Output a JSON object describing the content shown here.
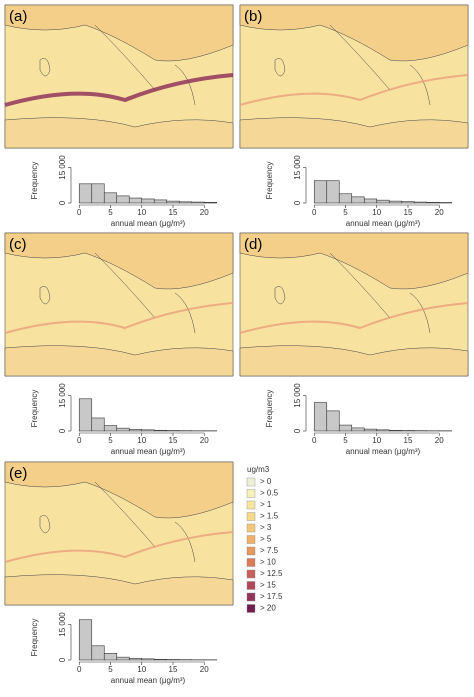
{
  "panels": [
    {
      "label": "(a)",
      "chart_data": {
        "type": "histogram",
        "bins": [
          0,
          2,
          4,
          6,
          8,
          10,
          12,
          14,
          16,
          18,
          20,
          22
        ],
        "values": [
          8100,
          8100,
          4300,
          3000,
          2100,
          1700,
          1300,
          800,
          500,
          400,
          300
        ],
        "color": "#c8c8c8",
        "xlim": [
          -1,
          23
        ],
        "ylim": [
          0,
          19000
        ],
        "xticks": [
          0,
          5,
          10,
          15,
          20
        ],
        "yticks": [
          0,
          {
            "value": 15000,
            "label": "15 000"
          }
        ],
        "x_label": "annual mean (μg/m³)",
        "y_label": "Frequency"
      }
    },
    {
      "label": "(b)",
      "chart_data": {
        "type": "histogram",
        "bins": [
          0,
          2,
          4,
          6,
          8,
          10,
          12,
          14,
          16,
          18,
          20,
          22
        ],
        "values": [
          9400,
          9400,
          3900,
          2600,
          1700,
          1200,
          800,
          600,
          400,
          300,
          200
        ],
        "color": "#c8c8c8",
        "xlim": [
          -1,
          23
        ],
        "ylim": [
          0,
          19000
        ],
        "xticks": [
          0,
          5,
          10,
          15,
          20
        ],
        "yticks": [
          0,
          {
            "value": 15000,
            "label": "15 000"
          }
        ],
        "x_label": "annual mean (μg/m³)",
        "y_label": "Frequency"
      }
    },
    {
      "label": "(c)",
      "chart_data": {
        "type": "histogram",
        "bins": [
          0,
          2,
          4,
          6,
          8,
          10,
          12,
          14,
          16,
          18,
          20,
          22
        ],
        "values": [
          13600,
          5500,
          2300,
          1200,
          700,
          500,
          300,
          200,
          150,
          100,
          100
        ],
        "color": "#c8c8c8",
        "xlim": [
          -1,
          23
        ],
        "ylim": [
          0,
          19000
        ],
        "xticks": [
          0,
          5,
          10,
          15,
          20
        ],
        "yticks": [
          0,
          {
            "value": 15000,
            "label": "15 000"
          }
        ],
        "x_label": "annual mean (μg/m³)",
        "y_label": "Frequency"
      }
    },
    {
      "label": "(d)",
      "chart_data": {
        "type": "histogram",
        "bins": [
          0,
          2,
          4,
          6,
          8,
          10,
          12,
          14,
          16,
          18,
          20,
          22
        ],
        "values": [
          12000,
          8500,
          2500,
          1300,
          800,
          500,
          300,
          200,
          150,
          100,
          100
        ],
        "color": "#c8c8c8",
        "xlim": [
          -1,
          23
        ],
        "ylim": [
          0,
          19000
        ],
        "xticks": [
          0,
          5,
          10,
          15,
          20
        ],
        "yticks": [
          0,
          {
            "value": 15000,
            "label": "15 000"
          }
        ],
        "x_label": "annual mean (μg/m³)",
        "y_label": "Frequency"
      }
    },
    {
      "label": "(e)",
      "chart_data": {
        "type": "histogram",
        "bins": [
          0,
          2,
          4,
          6,
          8,
          10,
          12,
          14,
          16,
          18,
          20,
          22
        ],
        "values": [
          17000,
          6000,
          2800,
          1200,
          700,
          500,
          300,
          200,
          150,
          100,
          100
        ],
        "color": "#c8c8c8",
        "xlim": [
          -1,
          23
        ],
        "ylim": [
          0,
          19000
        ],
        "xticks": [
          0,
          5,
          10,
          15,
          20
        ],
        "yticks": [
          0,
          {
            "value": 15000,
            "label": "15 000"
          }
        ],
        "x_label": "annual mean (μg/m³)",
        "y_label": "Frequency"
      }
    }
  ],
  "legend": {
    "title": "ug/m3",
    "items": [
      {
        "label": "> 0",
        "color": "#eef0d6"
      },
      {
        "label": "> 0.5",
        "color": "#f7f0b8"
      },
      {
        "label": "> 1",
        "color": "#f8e6a0"
      },
      {
        "label": "> 1.5",
        "color": "#f7da8a"
      },
      {
        "label": "> 3",
        "color": "#f5c878"
      },
      {
        "label": "> 5",
        "color": "#f0b06a"
      },
      {
        "label": "> 7.5",
        "color": "#e8975e"
      },
      {
        "label": "> 10",
        "color": "#dc7b58"
      },
      {
        "label": "> 12.5",
        "color": "#c85f58"
      },
      {
        "label": "> 15",
        "color": "#b04858"
      },
      {
        "label": "> 17.5",
        "color": "#923458"
      },
      {
        "label": "> 20",
        "color": "#6e1f4e"
      }
    ]
  }
}
